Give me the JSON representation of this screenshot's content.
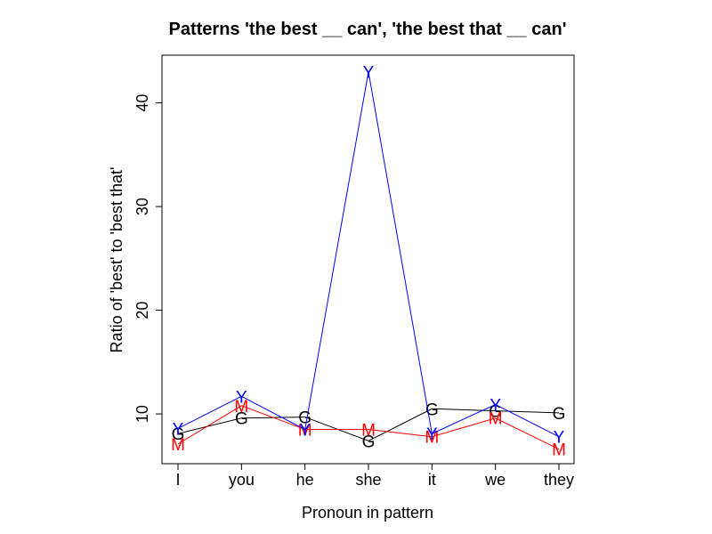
{
  "chart_data": {
    "type": "line",
    "title": "Patterns 'the best __ can', 'the best that __ can'",
    "xlabel": "Pronoun in pattern",
    "ylabel": "Ratio of 'best' to 'best that'",
    "categories": [
      "I",
      "you",
      "he",
      "she",
      "it",
      "we",
      "they"
    ],
    "y_ticks": [
      "10",
      "20",
      "30",
      "40"
    ],
    "ylim": [
      5.2,
      44.6
    ],
    "grid": false,
    "legend": "none",
    "series": [
      {
        "marker": "G",
        "color": "#000000",
        "values": [
          8.1,
          9.6,
          9.7,
          7.4,
          10.5,
          10.3,
          10.1
        ]
      },
      {
        "marker": "M",
        "color": "#ff0000",
        "values": [
          7.1,
          10.8,
          8.5,
          8.5,
          7.8,
          9.6,
          6.6
        ]
      },
      {
        "marker": "Y",
        "color": "#0000ff",
        "values": [
          8.6,
          11.7,
          8.5,
          43.0,
          8.1,
          10.9,
          7.8
        ]
      }
    ]
  }
}
